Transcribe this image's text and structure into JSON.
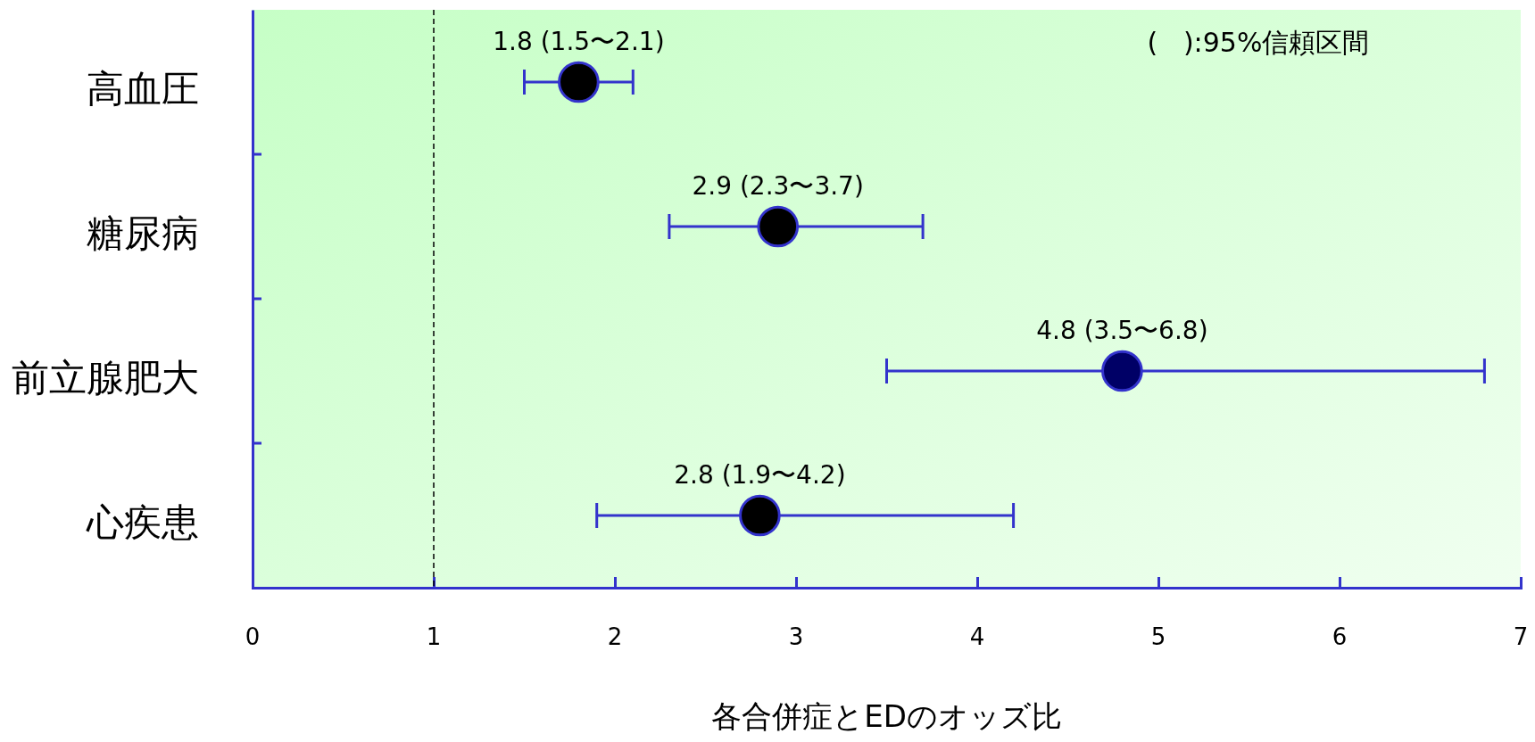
{
  "chart_data": {
    "type": "scatter",
    "orientation": "horizontal",
    "xlabel": "各合併症とEDのオッズ比",
    "categories": [
      "高血圧",
      "糖尿病",
      "前立腺肥大",
      "心疾患"
    ],
    "values": [
      1.8,
      2.9,
      4.8,
      2.8
    ],
    "errors": [
      [
        1.5,
        2.1
      ],
      [
        2.3,
        3.7
      ],
      [
        3.5,
        6.8
      ],
      [
        1.9,
        4.2
      ]
    ],
    "colors": [
      "#000000",
      "#000000",
      "#000066",
      "#000000"
    ],
    "value_labels": [
      "1.8 (1.5〜2.1)",
      "2.9 (2.3〜3.7)",
      "4.8 (3.5〜6.8)",
      "2.8 (1.9〜4.2)"
    ],
    "marker": "circle",
    "xlim": [
      0,
      7
    ],
    "xticks": [
      0,
      1,
      2,
      3,
      4,
      5,
      6,
      7
    ],
    "ref_lines": [
      {
        "axis": "x",
        "value": 1,
        "label": null,
        "color": "#000000",
        "line_style": "dashed"
      }
    ],
    "annotations": [
      "(   ):95%信頼区間"
    ],
    "grid": false
  }
}
